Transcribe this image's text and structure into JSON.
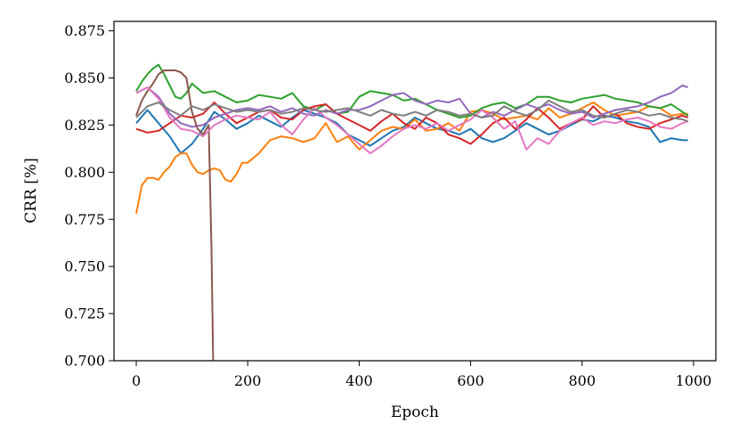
{
  "chart_data": {
    "type": "line",
    "title": "",
    "xlabel": "Epoch",
    "ylabel": "CRR [%]",
    "xlim": [
      -40,
      1040
    ],
    "ylim": [
      0.7,
      0.88
    ],
    "xticks": [
      0,
      200,
      400,
      600,
      800,
      1000
    ],
    "yticks": [
      0.7,
      0.725,
      0.75,
      0.775,
      0.8,
      0.825,
      0.85,
      0.875
    ],
    "xtick_labels": [
      "0",
      "200",
      "400",
      "600",
      "800",
      "1000"
    ],
    "ytick_labels": [
      "0.700",
      "0.725",
      "0.750",
      "0.775",
      "0.800",
      "0.825",
      "0.850",
      "0.875"
    ],
    "grid": false,
    "legend": "none",
    "series": [
      {
        "color": "#1f77b4",
        "x": [
          0,
          20,
          40,
          60,
          80,
          100,
          120,
          140,
          160,
          180,
          200,
          220,
          240,
          260,
          280,
          300,
          320,
          340,
          360,
          380,
          400,
          420,
          440,
          460,
          480,
          500,
          520,
          540,
          560,
          580,
          600,
          620,
          640,
          660,
          680,
          700,
          720,
          740,
          760,
          780,
          800,
          820,
          840,
          860,
          880,
          900,
          920,
          940,
          960,
          980,
          990
        ],
        "y": [
          0.826,
          0.833,
          0.826,
          0.819,
          0.81,
          0.815,
          0.823,
          0.832,
          0.828,
          0.823,
          0.826,
          0.83,
          0.827,
          0.824,
          0.829,
          0.833,
          0.831,
          0.829,
          0.826,
          0.82,
          0.817,
          0.814,
          0.818,
          0.822,
          0.824,
          0.829,
          0.826,
          0.823,
          0.822,
          0.82,
          0.823,
          0.818,
          0.816,
          0.818,
          0.822,
          0.826,
          0.823,
          0.82,
          0.822,
          0.825,
          0.828,
          0.827,
          0.83,
          0.829,
          0.827,
          0.826,
          0.824,
          0.816,
          0.818,
          0.817,
          0.817
        ]
      },
      {
        "color": "#ff7f0e",
        "x": [
          0,
          10,
          20,
          30,
          40,
          50,
          60,
          70,
          80,
          90,
          100,
          110,
          120,
          130,
          140,
          150,
          160,
          170,
          180,
          190,
          200,
          220,
          240,
          260,
          280,
          300,
          320,
          340,
          360,
          380,
          400,
          420,
          440,
          460,
          480,
          500,
          520,
          540,
          560,
          580,
          600,
          620,
          640,
          660,
          680,
          700,
          720,
          740,
          760,
          780,
          800,
          820,
          840,
          860,
          880,
          900,
          920,
          940,
          960,
          980,
          990
        ],
        "y": [
          0.778,
          0.793,
          0.797,
          0.797,
          0.796,
          0.8,
          0.803,
          0.808,
          0.81,
          0.81,
          0.804,
          0.8,
          0.799,
          0.801,
          0.802,
          0.801,
          0.796,
          0.795,
          0.799,
          0.805,
          0.805,
          0.81,
          0.817,
          0.819,
          0.818,
          0.816,
          0.818,
          0.826,
          0.816,
          0.819,
          0.812,
          0.817,
          0.822,
          0.824,
          0.823,
          0.828,
          0.822,
          0.823,
          0.826,
          0.822,
          0.832,
          0.833,
          0.831,
          0.828,
          0.829,
          0.83,
          0.828,
          0.834,
          0.829,
          0.831,
          0.834,
          0.837,
          0.833,
          0.83,
          0.831,
          0.832,
          0.835,
          0.834,
          0.83,
          0.831,
          0.831
        ]
      },
      {
        "color": "#2ca02c",
        "x": [
          0,
          10,
          20,
          30,
          40,
          50,
          60,
          70,
          80,
          90,
          100,
          120,
          140,
          160,
          180,
          200,
          220,
          240,
          260,
          280,
          300,
          320,
          340,
          360,
          380,
          400,
          420,
          440,
          460,
          480,
          500,
          520,
          540,
          560,
          580,
          600,
          620,
          640,
          660,
          680,
          700,
          720,
          740,
          760,
          780,
          800,
          820,
          840,
          860,
          880,
          900,
          920,
          940,
          960,
          980,
          990
        ],
        "y": [
          0.843,
          0.848,
          0.852,
          0.855,
          0.857,
          0.852,
          0.846,
          0.84,
          0.839,
          0.842,
          0.847,
          0.842,
          0.843,
          0.84,
          0.837,
          0.838,
          0.841,
          0.84,
          0.839,
          0.842,
          0.835,
          0.833,
          0.836,
          0.831,
          0.832,
          0.84,
          0.843,
          0.842,
          0.841,
          0.838,
          0.839,
          0.836,
          0.833,
          0.831,
          0.829,
          0.83,
          0.834,
          0.836,
          0.837,
          0.834,
          0.836,
          0.84,
          0.84,
          0.838,
          0.837,
          0.839,
          0.84,
          0.841,
          0.839,
          0.838,
          0.837,
          0.835,
          0.834,
          0.836,
          0.832,
          0.83
        ]
      },
      {
        "color": "#d62728",
        "x": [
          0,
          20,
          40,
          60,
          80,
          100,
          120,
          140,
          160,
          180,
          200,
          220,
          240,
          260,
          280,
          300,
          320,
          340,
          360,
          380,
          400,
          420,
          440,
          460,
          480,
          500,
          520,
          540,
          560,
          580,
          600,
          620,
          640,
          660,
          680,
          700,
          720,
          740,
          760,
          780,
          800,
          820,
          840,
          860,
          880,
          900,
          920,
          940,
          960,
          980,
          990
        ],
        "y": [
          0.823,
          0.821,
          0.822,
          0.826,
          0.83,
          0.829,
          0.831,
          0.837,
          0.831,
          0.826,
          0.829,
          0.832,
          0.833,
          0.829,
          0.828,
          0.833,
          0.835,
          0.836,
          0.831,
          0.828,
          0.825,
          0.822,
          0.827,
          0.831,
          0.826,
          0.823,
          0.829,
          0.826,
          0.82,
          0.818,
          0.815,
          0.82,
          0.826,
          0.829,
          0.823,
          0.828,
          0.834,
          0.829,
          0.823,
          0.826,
          0.828,
          0.835,
          0.829,
          0.831,
          0.826,
          0.824,
          0.823,
          0.826,
          0.828,
          0.83,
          0.829
        ]
      },
      {
        "color": "#9467bd",
        "x": [
          0,
          20,
          40,
          60,
          80,
          100,
          120,
          140,
          160,
          180,
          200,
          220,
          240,
          260,
          280,
          300,
          320,
          340,
          360,
          380,
          400,
          420,
          440,
          460,
          480,
          500,
          520,
          540,
          560,
          580,
          600,
          620,
          640,
          660,
          680,
          700,
          720,
          740,
          760,
          780,
          800,
          820,
          840,
          860,
          880,
          900,
          920,
          940,
          960,
          980,
          990
        ],
        "y": [
          0.842,
          0.845,
          0.84,
          0.831,
          0.826,
          0.824,
          0.825,
          0.829,
          0.831,
          0.833,
          0.834,
          0.833,
          0.835,
          0.832,
          0.834,
          0.831,
          0.83,
          0.833,
          0.831,
          0.833,
          0.833,
          0.835,
          0.838,
          0.841,
          0.842,
          0.838,
          0.836,
          0.838,
          0.837,
          0.839,
          0.831,
          0.829,
          0.832,
          0.83,
          0.833,
          0.836,
          0.834,
          0.836,
          0.833,
          0.831,
          0.832,
          0.829,
          0.831,
          0.833,
          0.834,
          0.835,
          0.837,
          0.84,
          0.842,
          0.846,
          0.845
        ]
      },
      {
        "color": "#8c564b",
        "x": [
          0,
          10,
          20,
          30,
          40,
          50,
          60,
          70,
          80,
          90,
          100,
          110,
          120,
          130,
          135,
          138
        ],
        "y": [
          0.83,
          0.838,
          0.843,
          0.847,
          0.852,
          0.854,
          0.854,
          0.854,
          0.853,
          0.85,
          0.832,
          0.823,
          0.82,
          0.825,
          0.76,
          0.7
        ]
      },
      {
        "color": "#e377c2",
        "x": [
          0,
          20,
          40,
          60,
          80,
          100,
          120,
          140,
          160,
          180,
          200,
          220,
          240,
          260,
          280,
          300,
          320,
          340,
          360,
          380,
          400,
          420,
          440,
          460,
          480,
          500,
          520,
          540,
          560,
          580,
          600,
          620,
          640,
          660,
          680,
          700,
          720,
          740,
          760,
          780,
          800,
          820,
          840,
          860,
          880,
          900,
          920,
          940,
          960,
          980,
          990
        ],
        "y": [
          0.842,
          0.845,
          0.839,
          0.829,
          0.823,
          0.822,
          0.819,
          0.825,
          0.828,
          0.83,
          0.829,
          0.828,
          0.832,
          0.825,
          0.82,
          0.828,
          0.834,
          0.829,
          0.825,
          0.82,
          0.815,
          0.81,
          0.814,
          0.819,
          0.823,
          0.825,
          0.823,
          0.826,
          0.822,
          0.825,
          0.828,
          0.833,
          0.829,
          0.823,
          0.827,
          0.812,
          0.818,
          0.815,
          0.822,
          0.826,
          0.829,
          0.825,
          0.827,
          0.826,
          0.828,
          0.829,
          0.827,
          0.824,
          0.823,
          0.826,
          0.827
        ]
      },
      {
        "color": "#7f7f7f",
        "x": [
          0,
          20,
          40,
          60,
          80,
          100,
          120,
          140,
          160,
          180,
          200,
          220,
          240,
          260,
          280,
          300,
          320,
          340,
          360,
          380,
          400,
          420,
          440,
          460,
          480,
          500,
          520,
          540,
          560,
          580,
          600,
          620,
          640,
          660,
          680,
          700,
          720,
          740,
          760,
          780,
          800,
          820,
          840,
          860,
          880,
          900,
          920,
          940,
          960,
          980,
          990
        ],
        "y": [
          0.829,
          0.835,
          0.837,
          0.833,
          0.83,
          0.835,
          0.833,
          0.836,
          0.834,
          0.832,
          0.833,
          0.832,
          0.833,
          0.831,
          0.832,
          0.834,
          0.833,
          0.832,
          0.833,
          0.834,
          0.832,
          0.83,
          0.833,
          0.831,
          0.83,
          0.832,
          0.83,
          0.833,
          0.832,
          0.83,
          0.831,
          0.829,
          0.83,
          0.835,
          0.832,
          0.83,
          0.833,
          0.838,
          0.835,
          0.832,
          0.833,
          0.83,
          0.829,
          0.831,
          0.833,
          0.832,
          0.83,
          0.831,
          0.829,
          0.828,
          0.827
        ]
      }
    ]
  }
}
